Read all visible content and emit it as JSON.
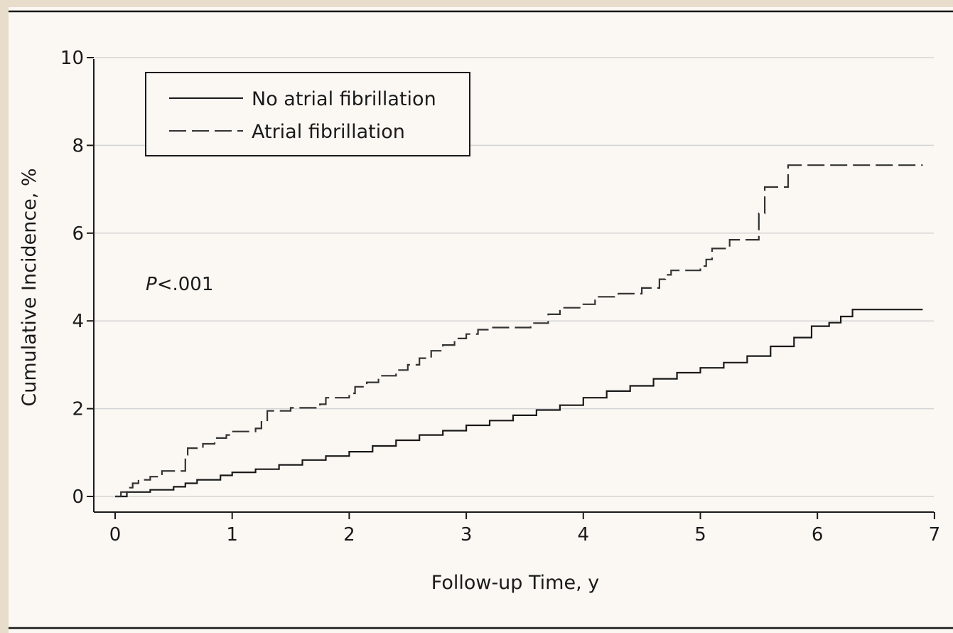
{
  "chart_data": {
    "type": "line",
    "title": "",
    "xlabel": "Follow-up Time, y",
    "ylabel": "Cumulative Incidence, %",
    "xlim": [
      0,
      7
    ],
    "ylim": [
      0,
      10
    ],
    "x_ticks": [
      0,
      1,
      2,
      3,
      4,
      5,
      6,
      7
    ],
    "y_ticks": [
      0,
      2,
      4,
      6,
      8,
      10
    ],
    "grid": "horizontal",
    "legend_position": "top-left",
    "annotation": {
      "italic": "P",
      "text": "<.001"
    },
    "series": [
      {
        "name": "No atrial fibrillation",
        "style": "solid",
        "color": "#1a1a1a",
        "step": true,
        "x": [
          0.0,
          0.1,
          0.3,
          0.5,
          0.6,
          0.7,
          0.9,
          1.0,
          1.2,
          1.4,
          1.6,
          1.8,
          2.0,
          2.2,
          2.4,
          2.6,
          2.8,
          3.0,
          3.2,
          3.4,
          3.6,
          3.8,
          4.0,
          4.2,
          4.4,
          4.6,
          4.8,
          5.0,
          5.2,
          5.4,
          5.6,
          5.8,
          5.95,
          6.1,
          6.2,
          6.3,
          6.9
        ],
        "y": [
          0.0,
          0.1,
          0.15,
          0.22,
          0.3,
          0.38,
          0.48,
          0.55,
          0.62,
          0.72,
          0.83,
          0.92,
          1.02,
          1.15,
          1.28,
          1.4,
          1.5,
          1.62,
          1.73,
          1.85,
          1.97,
          2.08,
          2.25,
          2.4,
          2.52,
          2.68,
          2.82,
          2.93,
          3.05,
          3.2,
          3.42,
          3.62,
          3.88,
          3.96,
          4.1,
          4.26,
          4.26
        ]
      },
      {
        "name": "Atrial fibrillation",
        "style": "dashed",
        "color": "#333333",
        "step": true,
        "x": [
          0.0,
          0.05,
          0.1,
          0.15,
          0.2,
          0.3,
          0.4,
          0.6,
          0.62,
          0.75,
          0.85,
          0.95,
          1.0,
          1.2,
          1.25,
          1.3,
          1.5,
          1.75,
          1.8,
          2.0,
          2.05,
          2.15,
          2.25,
          2.4,
          2.5,
          2.6,
          2.7,
          2.8,
          2.9,
          3.0,
          3.1,
          3.2,
          3.55,
          3.7,
          3.8,
          4.0,
          4.1,
          4.3,
          4.5,
          4.65,
          4.7,
          4.75,
          5.0,
          5.05,
          5.1,
          5.25,
          5.48,
          5.5,
          5.55,
          5.75,
          6.9
        ],
        "y": [
          0.0,
          0.1,
          0.2,
          0.3,
          0.38,
          0.45,
          0.58,
          0.95,
          1.1,
          1.2,
          1.33,
          1.4,
          1.48,
          1.55,
          1.7,
          1.95,
          2.02,
          2.1,
          2.25,
          2.35,
          2.5,
          2.6,
          2.75,
          2.88,
          3.0,
          3.15,
          3.32,
          3.45,
          3.6,
          3.7,
          3.8,
          3.85,
          3.95,
          4.15,
          4.3,
          4.38,
          4.55,
          4.62,
          4.75,
          4.95,
          5.05,
          5.15,
          5.25,
          5.4,
          5.65,
          5.85,
          5.85,
          6.45,
          7.05,
          7.55,
          7.55
        ]
      }
    ]
  }
}
